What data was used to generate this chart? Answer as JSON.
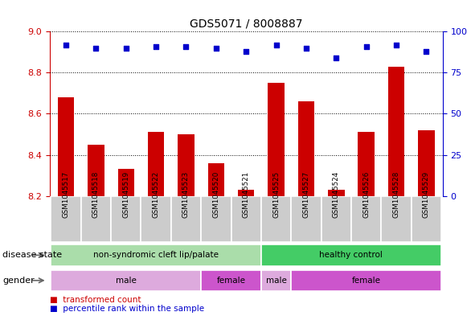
{
  "title": "GDS5071 / 8008887",
  "samples": [
    "GSM1045517",
    "GSM1045518",
    "GSM1045519",
    "GSM1045522",
    "GSM1045523",
    "GSM1045520",
    "GSM1045521",
    "GSM1045525",
    "GSM1045527",
    "GSM1045524",
    "GSM1045526",
    "GSM1045528",
    "GSM1045529"
  ],
  "bar_values": [
    8.68,
    8.45,
    8.33,
    8.51,
    8.5,
    8.36,
    8.23,
    8.75,
    8.66,
    8.23,
    8.51,
    8.83,
    8.52
  ],
  "bar_baseline": 8.2,
  "dot_values": [
    92,
    90,
    90,
    91,
    91,
    90,
    88,
    92,
    90,
    84,
    91,
    92,
    88
  ],
  "ylim_left": [
    8.2,
    9.0
  ],
  "ylim_right": [
    0,
    100
  ],
  "yticks_left": [
    8.2,
    8.4,
    8.6,
    8.8,
    9.0
  ],
  "yticks_right": [
    0,
    25,
    50,
    75,
    100
  ],
  "bar_color": "#cc0000",
  "dot_color": "#0000cc",
  "disease_state_groups": [
    {
      "label": "non-syndromic cleft lip/palate",
      "start": 0,
      "end": 7,
      "color": "#aaddaa"
    },
    {
      "label": "healthy control",
      "start": 7,
      "end": 13,
      "color": "#44cc66"
    }
  ],
  "gender_groups": [
    {
      "label": "male",
      "start": 0,
      "end": 5,
      "color": "#ddaadd"
    },
    {
      "label": "female",
      "start": 5,
      "end": 7,
      "color": "#cc55cc"
    },
    {
      "label": "male",
      "start": 7,
      "end": 8,
      "color": "#ddaadd"
    },
    {
      "label": "female",
      "start": 8,
      "end": 13,
      "color": "#cc55cc"
    }
  ],
  "legend_items": [
    {
      "label": "transformed count",
      "color": "#cc0000"
    },
    {
      "label": "percentile rank within the sample",
      "color": "#0000cc"
    }
  ],
  "left_axis_color": "#cc0000",
  "right_axis_color": "#0000cc",
  "label_disease": "disease state",
  "label_gender": "gender"
}
